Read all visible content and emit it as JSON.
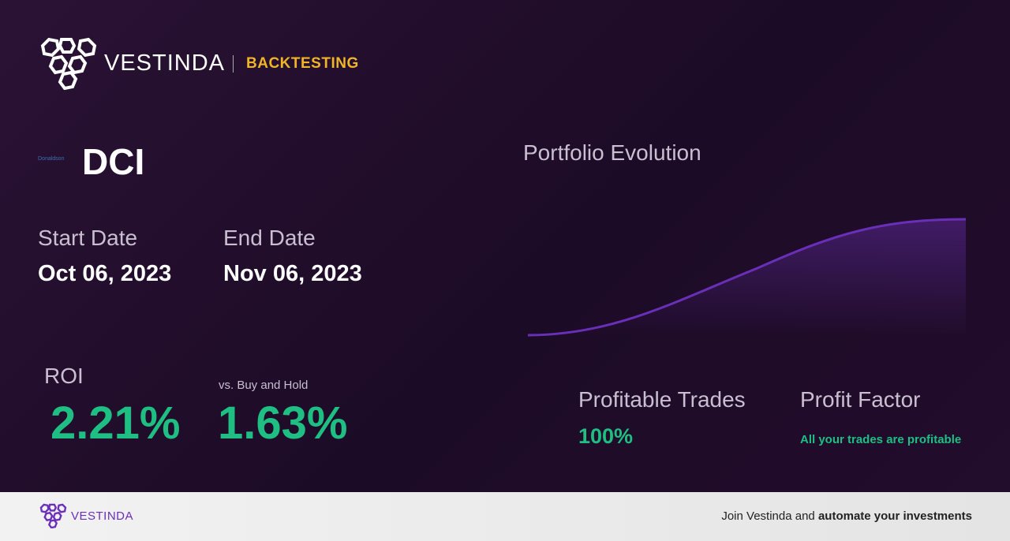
{
  "header": {
    "brand": "VESTINDA",
    "section": "BACKTESTING"
  },
  "asset": {
    "logo_text": "Donaldson",
    "ticker": "DCI"
  },
  "dates": {
    "start_label": "Start Date",
    "start": "Oct 06, 2023",
    "end_label": "End Date",
    "end": "Nov 06, 2023"
  },
  "roi": {
    "label": "ROI",
    "value": "2.21%",
    "compare_label": "vs. Buy and Hold",
    "compare_value": "1.63%"
  },
  "portfolio": {
    "title": "Portfolio Evolution"
  },
  "stats": {
    "trades_label": "Profitable Trades",
    "trades_value": "100%",
    "factor_label": "Profit Factor",
    "factor_note": "All your trades are profitable"
  },
  "footer": {
    "brand": "VESTINDA",
    "text": "Join Vestinda and",
    "bold": "automate your investments"
  }
}
